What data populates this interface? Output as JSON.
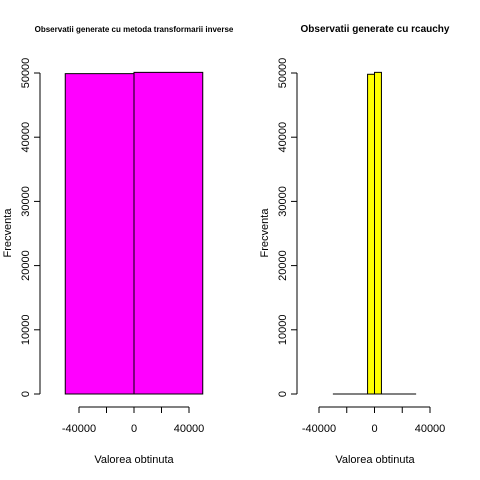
{
  "chart_data": [
    {
      "type": "bar",
      "title": "Observatii generate cu metoda transformarii inverse",
      "xlabel": "Valorea obtinuta",
      "ylabel": "Frecventa",
      "bar_color": "#FF00FF",
      "xlim": [
        -50000,
        50000
      ],
      "ylim": [
        0,
        50000
      ],
      "x_ticks": [
        -40000,
        -20000,
        0,
        20000,
        40000
      ],
      "x_tick_labels": [
        "-40000",
        "",
        "0",
        "",
        "40000"
      ],
      "y_ticks": [
        0,
        10000,
        20000,
        30000,
        40000,
        50000
      ],
      "y_tick_labels": [
        "0",
        "10000",
        "20000",
        "30000",
        "40000",
        "50000"
      ],
      "bins": [
        {
          "x0": -50000,
          "x1": 0,
          "count": 49900
        },
        {
          "x0": 0,
          "x1": 50000,
          "count": 50100
        }
      ]
    },
    {
      "type": "bar",
      "title": "Observatii generate cu rcauchy",
      "xlabel": "Valorea obtinuta",
      "ylabel": "Frecventa",
      "bar_color": "#FFFF00",
      "xlim": [
        -30000,
        30000
      ],
      "ylim": [
        0,
        50000
      ],
      "x_ticks": [
        -40000,
        -20000,
        0,
        20000,
        40000
      ],
      "x_tick_labels": [
        "-40000",
        "",
        "0",
        "",
        "40000"
      ],
      "y_ticks": [
        0,
        10000,
        20000,
        30000,
        40000,
        50000
      ],
      "y_tick_labels": [
        "0",
        "10000",
        "20000",
        "30000",
        "40000",
        "50000"
      ],
      "bins": [
        {
          "x0": -30000,
          "x1": -5000,
          "count": 0
        },
        {
          "x0": -5000,
          "x1": 0,
          "count": 49800
        },
        {
          "x0": 0,
          "x1": 5000,
          "count": 50100
        },
        {
          "x0": 5000,
          "x1": 30000,
          "count": 0
        }
      ]
    }
  ]
}
